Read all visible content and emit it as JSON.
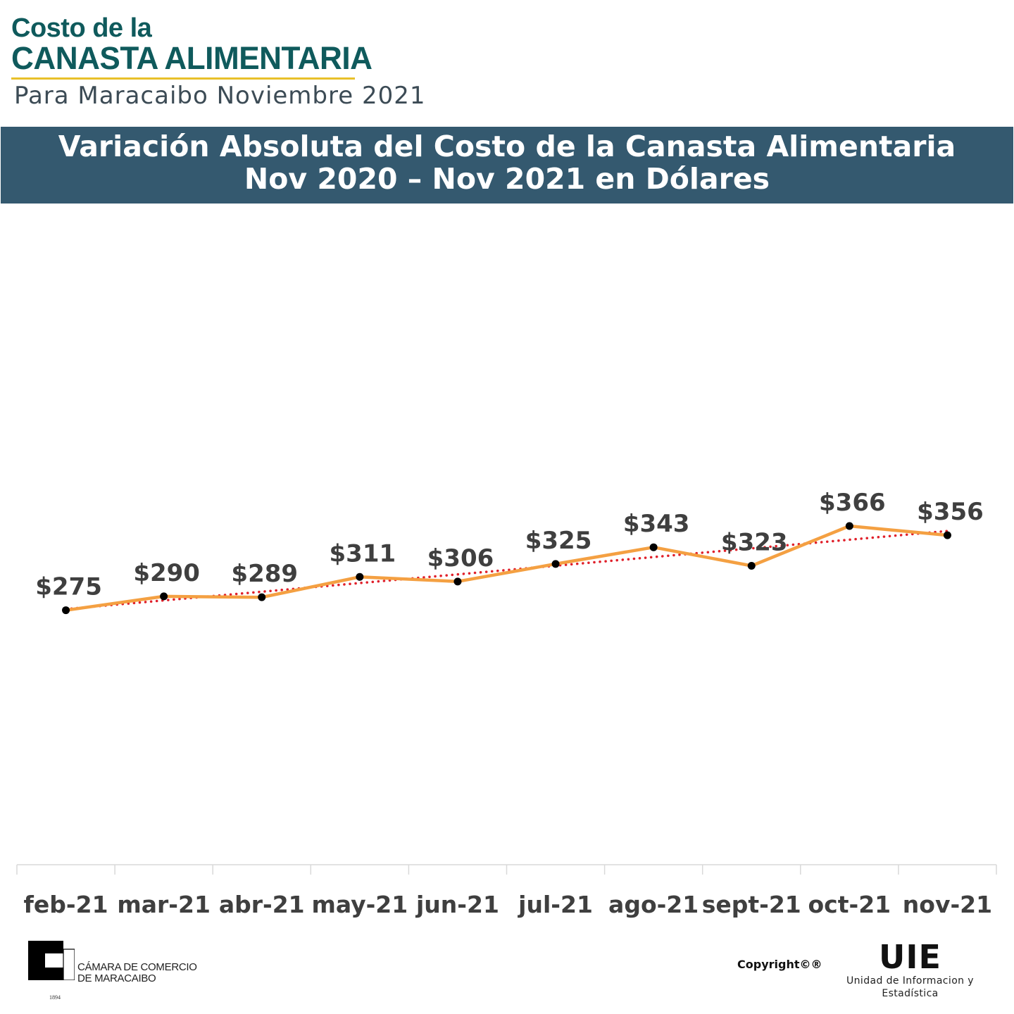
{
  "header": {
    "brand_line1": "Costo de la",
    "brand_line2": "CANASTA ALIMENTARIA",
    "subtitle": "Para Maracaibo Noviembre 2021",
    "title_line1": "Variación Absoluta del Costo de la Canasta Alimentaria",
    "title_line2": "Nov 2020 – Nov 2021 en Dólares"
  },
  "chart_data": {
    "type": "line",
    "categories": [
      "feb-21",
      "mar-21",
      "abr-21",
      "may-21",
      "jun-21",
      "jul-21",
      "ago-21",
      "sept-21",
      "oct-21",
      "nov-21"
    ],
    "series": [
      {
        "values": [
          275,
          290,
          289,
          311,
          306,
          325,
          343,
          323,
          366,
          356
        ],
        "labels": [
          "$275",
          "$290",
          "$289",
          "$311",
          "$306",
          "$325",
          "$343",
          "$323",
          "$366",
          "$356"
        ],
        "color": "#f4a042",
        "marker_color": "#000000"
      }
    ],
    "trendline": {
      "type": "linear",
      "style": "dotted",
      "color": "#e0202a"
    },
    "ylim": [
      0,
      700
    ],
    "y_axis_visible": false,
    "grid": false,
    "legend": "none",
    "title": "",
    "xlabel": "",
    "ylabel": ""
  },
  "footer": {
    "ccm_line1": "CÁMARA DE COMERCIO",
    "ccm_line2": "DE MARACAIBO",
    "ccm_year": "1894",
    "copyright": "Copyright©®",
    "uie_title": "UIE",
    "uie_sub_line1": "Unidad de Informacion y",
    "uie_sub_line2": "Estadística"
  },
  "colors": {
    "brand": "#0f5a5c",
    "brand_underline": "#e8c02a",
    "banner": "#34596f",
    "line": "#f4a042",
    "trend": "#e0202a",
    "label": "#3f3f3f",
    "axis": "#d9d9d9"
  }
}
